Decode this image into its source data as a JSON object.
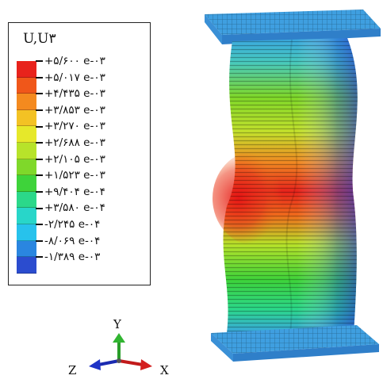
{
  "legend": {
    "title": "U,U۳",
    "colors": [
      "#e8231c",
      "#f0571a",
      "#f48a1f",
      "#f3c224",
      "#e6e82a",
      "#b7e32a",
      "#7fd82a",
      "#3ed33a",
      "#2bd88a",
      "#28d6c9",
      "#27c2ec",
      "#2a86e0",
      "#2b4ccf"
    ],
    "values": [
      "+۵/۶۰۰ e-۰۳",
      "+۵/۰۱۷ e-۰۳",
      "+۴/۴۳۵ e-۰۳",
      "+۳/۸۵۳ e-۰۳",
      "+۳/۲۷۰ e-۰۳",
      "+۲/۶۸۸ e-۰۳",
      "+۲/۱۰۵ e-۰۳",
      "+۱/۵۲۳ e-۰۳",
      "+۹/۴۰۴ e-۰۴",
      "+۳/۵۸۰ e-۰۴",
      "-۲/۲۴۵ e-۰۴",
      "-۸/۰۶۹ e-۰۴",
      "-۱/۳۸۹ e-۰۳"
    ]
  },
  "triad": {
    "y": "Y",
    "x": "X",
    "z": "Z"
  }
}
